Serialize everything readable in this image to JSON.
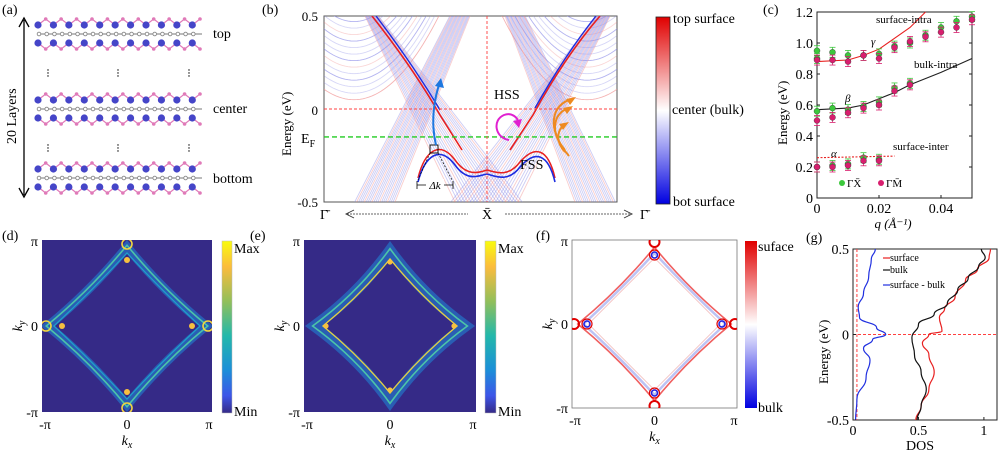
{
  "figure": {
    "panel_labels": [
      "(a)",
      "(b)",
      "(c)",
      "(d)",
      "(e)",
      "(f)",
      "(g)"
    ]
  },
  "panel_a": {
    "side_label": "20 Layers",
    "layer_labels": [
      "top",
      "center",
      "bottom"
    ],
    "colors": {
      "blue_atom": "#4545c8",
      "pink_atom": "#e07ab8",
      "grey_atom": "#a0a0a0"
    }
  },
  "chart_data": [
    {
      "id": "b",
      "type": "line",
      "title": "",
      "xlabel": "",
      "ylabel": "Energy (eV)",
      "ylim": [
        -0.5,
        0.5
      ],
      "yticks": [
        "0.5",
        "0",
        "-0.5"
      ],
      "ef_label": "E",
      "ef_sub": "F",
      "ef_value": -0.15,
      "x_ticks": [
        "Γ̄",
        "X̄",
        "Γ̄"
      ],
      "annotations": [
        "HSS",
        "FSS",
        "Δk"
      ],
      "colorbar": {
        "top": "top surface",
        "middle": "center (bulk)",
        "bottom": "bot surface"
      },
      "lines": [
        {
          "name": "zero-line",
          "y": 0,
          "color": "#ff4040",
          "style": "dashed"
        },
        {
          "name": "fermi-line",
          "y": -0.15,
          "color": "#22cc22",
          "style": "dashed"
        }
      ]
    },
    {
      "id": "c",
      "type": "scatter",
      "xlabel": "q (Å⁻¹)",
      "ylabel": "Energy (eV)",
      "xlim": [
        0,
        0.05
      ],
      "ylim": [
        0,
        1.2
      ],
      "xticks": [
        "0",
        "0.02",
        "0.04"
      ],
      "yticks": [
        "0",
        "0.2",
        "0.4",
        "0.6",
        "0.8",
        "1.0",
        "1.2"
      ],
      "legend": [
        "ΓX̄",
        "ΓM̄"
      ],
      "curve_labels": [
        "surface-intra",
        "bulk-intra",
        "surface-inter"
      ],
      "greek_labels": [
        "γ",
        "β",
        "α"
      ],
      "series": [
        {
          "name": "ΓX̄",
          "color": "#3cc83c",
          "points": [
            [
              0,
              0.95
            ],
            [
              0,
              0.9
            ],
            [
              0.005,
              0.94
            ],
            [
              0.01,
              0.92
            ],
            [
              0.015,
              0.92
            ],
            [
              0.02,
              0.93
            ],
            [
              0.025,
              0.98
            ],
            [
              0.03,
              1.0
            ],
            [
              0.035,
              1.05
            ],
            [
              0.04,
              1.1
            ],
            [
              0.045,
              1.14
            ],
            [
              0.05,
              1.17
            ],
            [
              0,
              0.56
            ],
            [
              0.005,
              0.58
            ],
            [
              0.01,
              0.57
            ],
            [
              0.015,
              0.59
            ],
            [
              0.02,
              0.62
            ],
            [
              0.025,
              0.71
            ],
            [
              0.03,
              0.74
            ],
            [
              0,
              0.2
            ],
            [
              0.005,
              0.21
            ],
            [
              0.01,
              0.22
            ],
            [
              0.015,
              0.26
            ],
            [
              0.02,
              0.25
            ]
          ]
        },
        {
          "name": "ΓM̄",
          "color": "#d81e6e",
          "points": [
            [
              0,
              0.89
            ],
            [
              0.005,
              0.89
            ],
            [
              0.01,
              0.88
            ],
            [
              0.015,
              0.92
            ],
            [
              0.02,
              0.9
            ],
            [
              0.025,
              0.97
            ],
            [
              0.03,
              1.01
            ],
            [
              0.035,
              1.04
            ],
            [
              0.04,
              1.07
            ],
            [
              0.045,
              1.1
            ],
            [
              0.05,
              1.15
            ],
            [
              0,
              0.5
            ],
            [
              0.005,
              0.52
            ],
            [
              0.01,
              0.55
            ],
            [
              0.015,
              0.58
            ],
            [
              0.02,
              0.6
            ],
            [
              0.025,
              0.69
            ],
            [
              0.03,
              0.73
            ],
            [
              0,
              0.2
            ],
            [
              0.005,
              0.2
            ],
            [
              0.01,
              0.21
            ],
            [
              0.015,
              0.24
            ],
            [
              0.02,
              0.24
            ]
          ]
        },
        {
          "name": "surface-intra",
          "color": "#e82020",
          "type": "line",
          "points": [
            [
              0,
              0.88
            ],
            [
              0.01,
              0.89
            ],
            [
              0.015,
              0.92
            ],
            [
              0.02,
              0.96
            ],
            [
              0.025,
              1.03
            ],
            [
              0.03,
              1.1
            ],
            [
              0.035,
              1.2
            ]
          ]
        },
        {
          "name": "bulk-intra",
          "color": "#202020",
          "type": "line",
          "points": [
            [
              0,
              0.57
            ],
            [
              0.01,
              0.58
            ],
            [
              0.015,
              0.6
            ],
            [
              0.02,
              0.64
            ],
            [
              0.025,
              0.68
            ],
            [
              0.03,
              0.73
            ],
            [
              0.04,
              0.81
            ],
            [
              0.05,
              0.9
            ]
          ]
        },
        {
          "name": "surface-inter",
          "color": "#e82020",
          "type": "dashed",
          "points": [
            [
              0,
              0.26
            ],
            [
              0.025,
              0.27
            ]
          ]
        }
      ]
    },
    {
      "id": "d",
      "type": "heatmap",
      "xlabel": "k_x",
      "ylabel": "k_y",
      "xticks": [
        "-π",
        "0",
        "π"
      ],
      "yticks": [
        "π",
        "0",
        "-π"
      ],
      "colorbar": {
        "top": "Max",
        "bottom": "Min"
      }
    },
    {
      "id": "e",
      "type": "heatmap",
      "xlabel": "k_x",
      "ylabel": "k_y",
      "xticks": [
        "-π",
        "0",
        "π"
      ],
      "yticks": [
        "π",
        "0",
        "-π"
      ],
      "colorbar": {
        "top": "Max",
        "bottom": "Min"
      }
    },
    {
      "id": "f",
      "type": "heatmap",
      "xlabel": "k_x",
      "ylabel": "k_y",
      "xticks": [
        "-π",
        "0",
        "π"
      ],
      "yticks": [
        "π",
        "0",
        "-π"
      ],
      "colorbar": {
        "top": "suface",
        "bottom": "bulk"
      }
    },
    {
      "id": "g",
      "type": "line",
      "xlabel": "DOS",
      "ylabel": "Energy (eV)",
      "xlim": [
        0,
        1.1
      ],
      "ylim": [
        -0.5,
        0.5
      ],
      "xticks": [
        "0",
        "0.5",
        "1"
      ],
      "yticks": [
        "0.5",
        "0",
        "-0.5"
      ],
      "legend": [
        "surface",
        "bulk",
        "surface - bulk"
      ],
      "series": [
        {
          "name": "surface",
          "color": "#e82020",
          "points": [
            [
              0.48,
              -0.5
            ],
            [
              0.52,
              -0.42
            ],
            [
              0.58,
              -0.32
            ],
            [
              0.62,
              -0.22
            ],
            [
              0.58,
              -0.12
            ],
            [
              0.53,
              -0.05
            ],
            [
              0.58,
              0.0
            ],
            [
              0.68,
              0.02
            ],
            [
              0.66,
              0.1
            ],
            [
              0.7,
              0.15
            ],
            [
              0.78,
              0.22
            ],
            [
              0.86,
              0.32
            ],
            [
              0.95,
              0.38
            ],
            [
              1.04,
              0.45
            ],
            [
              1.05,
              0.5
            ]
          ]
        },
        {
          "name": "bulk",
          "color": "#111111",
          "points": [
            [
              0.49,
              -0.5
            ],
            [
              0.52,
              -0.42
            ],
            [
              0.56,
              -0.32
            ],
            [
              0.52,
              -0.22
            ],
            [
              0.47,
              -0.12
            ],
            [
              0.45,
              -0.02
            ],
            [
              0.5,
              0.06
            ],
            [
              0.62,
              0.12
            ],
            [
              0.72,
              0.18
            ],
            [
              0.8,
              0.26
            ],
            [
              0.88,
              0.33
            ],
            [
              0.96,
              0.4
            ],
            [
              1.01,
              0.45
            ],
            [
              0.98,
              0.5
            ]
          ]
        },
        {
          "name": "surface - bulk",
          "color": "#2030e0",
          "points": [
            [
              0.02,
              -0.5
            ],
            [
              0.03,
              -0.38
            ],
            [
              0.1,
              -0.25
            ],
            [
              0.13,
              -0.15
            ],
            [
              0.08,
              -0.08
            ],
            [
              0.15,
              -0.03
            ],
            [
              0.25,
              0.0
            ],
            [
              0.18,
              0.04
            ],
            [
              0.05,
              0.1
            ],
            [
              0.04,
              0.16
            ],
            [
              0.08,
              0.24
            ],
            [
              0.12,
              0.34
            ],
            [
              0.14,
              0.44
            ],
            [
              0.17,
              0.5
            ]
          ]
        }
      ],
      "lines": [
        {
          "name": "zero-line",
          "y": 0,
          "color": "#ff4040",
          "style": "dashed"
        },
        {
          "name": "zero-dos-line",
          "x": 0.03,
          "color": "#ff4040",
          "style": "dashed"
        }
      ]
    }
  ]
}
